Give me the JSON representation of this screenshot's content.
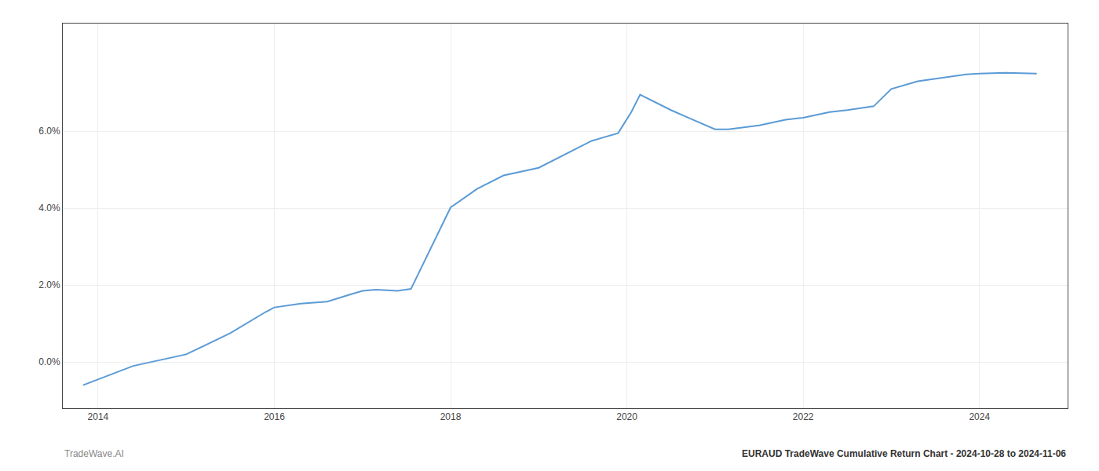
{
  "chart_data": {
    "type": "line",
    "title": "EURAUD TradeWave Cumulative Return Chart - 2024-10-28 to 2024-11-06",
    "annotations": [
      "TradeWave.AI"
    ],
    "x": [
      2013.83,
      2014.0,
      2014.4,
      2015.0,
      2015.5,
      2015.9,
      2016.0,
      2016.3,
      2016.6,
      2016.85,
      2017.0,
      2017.15,
      2017.4,
      2017.55,
      2018.0,
      2018.3,
      2018.6,
      2019.0,
      2019.3,
      2019.6,
      2019.9,
      2020.05,
      2020.15,
      2020.5,
      2020.7,
      2021.0,
      2021.15,
      2021.5,
      2021.8,
      2022.0,
      2022.3,
      2022.5,
      2022.8,
      2023.0,
      2023.3,
      2023.6,
      2023.85,
      2024.0,
      2024.3,
      2024.65
    ],
    "values": [
      -0.6,
      -0.45,
      -0.1,
      0.2,
      0.75,
      1.3,
      1.42,
      1.52,
      1.57,
      1.75,
      1.85,
      1.88,
      1.85,
      1.9,
      4.02,
      4.5,
      4.85,
      5.05,
      5.4,
      5.75,
      5.95,
      6.5,
      6.95,
      6.55,
      6.35,
      6.05,
      6.05,
      6.15,
      6.3,
      6.35,
      6.5,
      6.55,
      6.65,
      7.1,
      7.3,
      7.4,
      7.48,
      7.5,
      7.52,
      7.5
    ],
    "color": "#5b9bd5",
    "xlim": [
      2013.6,
      2025.0
    ],
    "xticks": [
      2014,
      2016,
      2018,
      2020,
      2022,
      2024
    ],
    "ylim": [
      -1.2,
      8.8
    ],
    "yticks": [
      {
        "value": 0.0,
        "label": "0.0%"
      },
      {
        "value": 2.0,
        "label": "2.0%"
      },
      {
        "value": 4.0,
        "label": "4.0%"
      },
      {
        "value": 6.0,
        "label": "6.0%"
      }
    ],
    "grid": true
  }
}
